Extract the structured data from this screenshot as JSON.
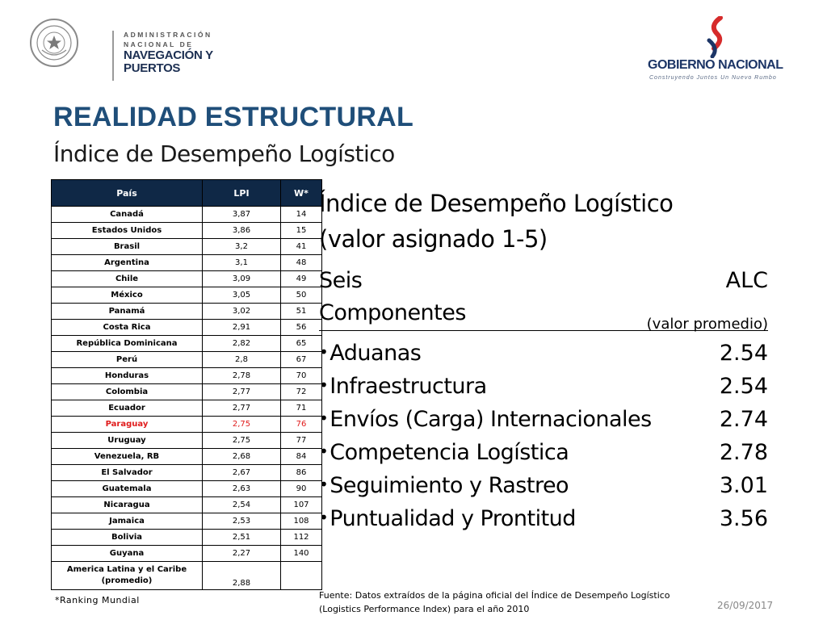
{
  "header": {
    "org_lines": [
      "ADMINISTRACIÓN",
      "NACIONAL DE",
      "NAVEGACIÓN Y",
      "PUERTOS"
    ],
    "seal_text": "REPÚBLICA DEL PARAGUAY",
    "gob_title": "GOBIERNO NACIONAL",
    "gob_tagline": "Construyendo Juntos Un Nuevo Rumbo"
  },
  "title": "REALIDAD ESTRUCTURAL",
  "subtitle": "Índice de Desempeño Logístico",
  "table": {
    "headers": [
      "País",
      "LPI",
      "W*"
    ],
    "rows": [
      {
        "country": "Canadá",
        "lpi": "3,87",
        "w": "14"
      },
      {
        "country": "Estados Unidos",
        "lpi": "3,86",
        "w": "15"
      },
      {
        "country": "Brasil",
        "lpi": "3,2",
        "w": "41"
      },
      {
        "country": "Argentina",
        "lpi": "3,1",
        "w": "48"
      },
      {
        "country": "Chile",
        "lpi": "3,09",
        "w": "49"
      },
      {
        "country": "México",
        "lpi": "3,05",
        "w": "50"
      },
      {
        "country": "Panamá",
        "lpi": "3,02",
        "w": "51"
      },
      {
        "country": "Costa Rica",
        "lpi": "2,91",
        "w": "56"
      },
      {
        "country": "República Dominicana",
        "lpi": "2,82",
        "w": "65"
      },
      {
        "country": "Perú",
        "lpi": "2,8",
        "w": "67"
      },
      {
        "country": "Honduras",
        "lpi": "2,78",
        "w": "70"
      },
      {
        "country": "Colombia",
        "lpi": "2,77",
        "w": "72"
      },
      {
        "country": "Ecuador",
        "lpi": "2,77",
        "w": "71"
      },
      {
        "country": "Paraguay",
        "lpi": "2,75",
        "w": "76",
        "highlight": true
      },
      {
        "country": "Uruguay",
        "lpi": "2,75",
        "w": "77"
      },
      {
        "country": "Venezuela, RB",
        "lpi": "2,68",
        "w": "84"
      },
      {
        "country": "El Salvador",
        "lpi": "2,67",
        "w": "86"
      },
      {
        "country": "Guatemala",
        "lpi": "2,63",
        "w": "90"
      },
      {
        "country": "Nicaragua",
        "lpi": "2,54",
        "w": "107"
      },
      {
        "country": "Jamaica",
        "lpi": "2,53",
        "w": "108"
      },
      {
        "country": "Bolivia",
        "lpi": "2,51",
        "w": "112"
      },
      {
        "country": "Guyana",
        "lpi": "2,27",
        "w": "140"
      }
    ],
    "average_row": {
      "country_line1": "America Latina y el Caribe",
      "country_line2": "(promedio)",
      "lpi": "2,88",
      "w": ""
    },
    "highlight_color": "#e01b1b",
    "header_bg": "#0f2846"
  },
  "footnote": "*Ranking Mundial",
  "panel": {
    "heading_line1": "Índice de Desempeño Logístico",
    "heading_line2": "(valor asignado 1-5)",
    "col_left_line1": "Seis",
    "col_left_line2": "Componentes",
    "col_right_line1": "ALC",
    "col_right_line2": "(valor promedio)",
    "components": [
      {
        "name": "Aduanas",
        "value": "2.54"
      },
      {
        "name": "Infraestructura",
        "value": "2.54"
      },
      {
        "name": "Envíos (Carga) Internacionales",
        "value": "2.74"
      },
      {
        "name": "Competencia Logística",
        "value": "2.78"
      },
      {
        "name": "Seguimiento y Rastreo",
        "value": "3.01"
      },
      {
        "name": "Puntualidad y Prontitud",
        "value": "3.56"
      }
    ],
    "bullet": "•"
  },
  "source_line1": "Fuente: Datos extraídos de la página oficial del Índice de Desempeño Logístico",
  "source_line2": "(Logistics Performance Index) para el año 2010",
  "date": "26/09/2017",
  "colors": {
    "title": "#1f4e79",
    "brand_navy": "#1c3566",
    "brand_red": "#d62b2b"
  }
}
